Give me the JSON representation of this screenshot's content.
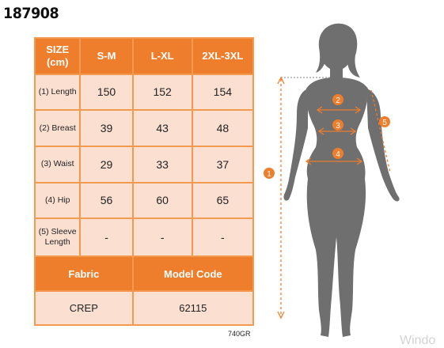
{
  "product_code": "187908",
  "table": {
    "header_size": "SIZE",
    "header_unit": "(cm)",
    "columns": [
      "S-M",
      "L-XL",
      "2XL-3XL"
    ],
    "rows": [
      {
        "label": "(1) Length",
        "values": [
          "150",
          "152",
          "154"
        ]
      },
      {
        "label": "(2) Breast",
        "values": [
          "39",
          "43",
          "48"
        ]
      },
      {
        "label": "(3) Waist",
        "values": [
          "29",
          "33",
          "37"
        ]
      },
      {
        "label": "(4) Hip",
        "values": [
          "56",
          "60",
          "65"
        ]
      },
      {
        "label_line1": "(5) Sleeve",
        "label_line2": "Length",
        "values": [
          "-",
          "-",
          "-"
        ]
      }
    ],
    "fabric_label": "Fabric",
    "model_code_label": "Model Code",
    "fabric_value": "CREP",
    "model_code_value": "62115"
  },
  "footer_code": "740GR",
  "watermark": "Windo",
  "figure": {
    "markers": [
      "1",
      "2",
      "3",
      "4",
      "5"
    ],
    "colors": {
      "accent": "#ef7e2c",
      "silhouette": "#6f6f6f",
      "table_light": "#fbe0d2"
    }
  }
}
